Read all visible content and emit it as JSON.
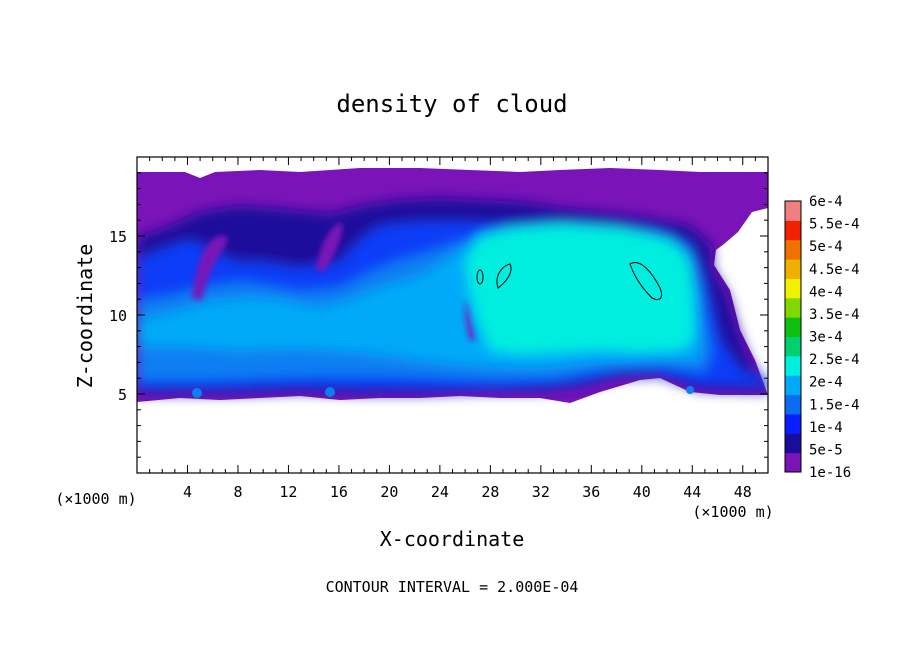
{
  "chart_data": {
    "type": "heatmap",
    "title": "density of cloud",
    "xlabel": "X-coordinate",
    "ylabel": "Z-coordinate",
    "x_unit": "(×1000 m)",
    "y_unit": "(×1000 m)",
    "xlim": [
      0,
      50
    ],
    "ylim": [
      0,
      20
    ],
    "x_ticks": [
      4,
      8,
      12,
      16,
      20,
      24,
      28,
      32,
      36,
      40,
      44,
      48
    ],
    "y_ticks": [
      5,
      10,
      15
    ],
    "footer": "CONTOUR INTERVAL = 2.000E-04",
    "colorbar": {
      "labels": [
        "1e-16",
        "5e-5",
        "1e-4",
        "1.5e-4",
        "2e-4",
        "2.5e-4",
        "3e-4",
        "3.5e-4",
        "4e-4",
        "4.5e-4",
        "5e-4",
        "5.5e-4",
        "6e-4"
      ],
      "colors": [
        "#7a14b8",
        "#1a0c9c",
        "#0a1eff",
        "#0a6cf0",
        "#00aaf8",
        "#00f0e0",
        "#00d070",
        "#10c010",
        "#80d800",
        "#f0f000",
        "#f0b000",
        "#f07000",
        "#f02000",
        "#f08080"
      ]
    },
    "cloud_layer": {
      "z_bottom": 5,
      "z_top": 19,
      "unit": "×1000 m"
    },
    "core_region": {
      "x_range": [
        24,
        46
      ],
      "z_range": [
        6,
        16
      ],
      "approx_value": 0.0002
    }
  }
}
